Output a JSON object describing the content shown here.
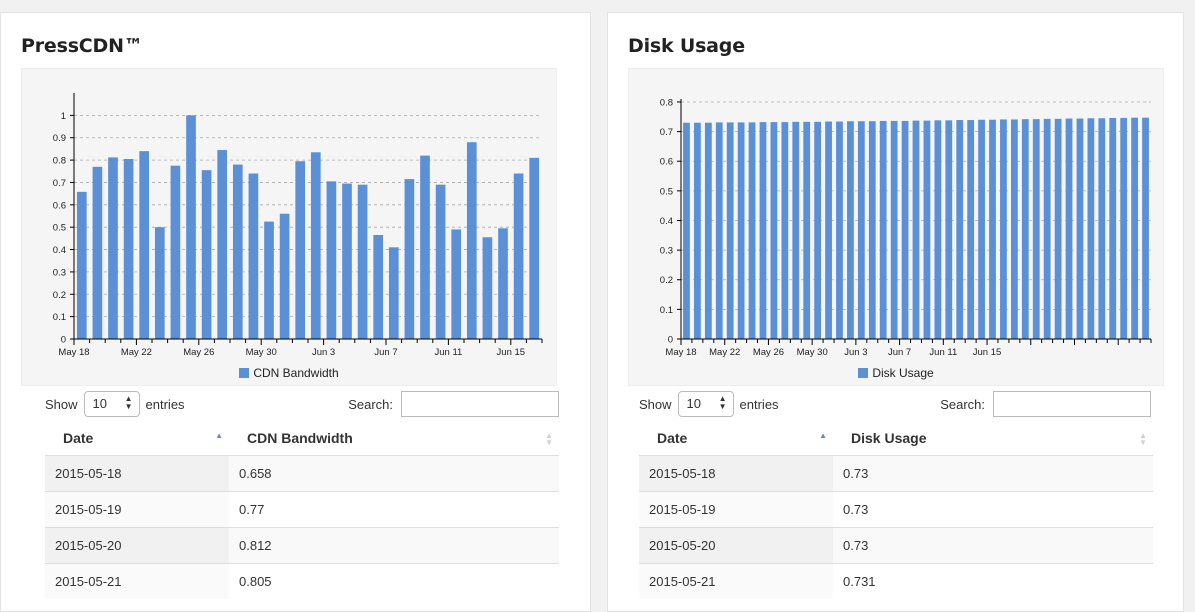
{
  "panels": [
    {
      "title": "PressCDN™",
      "legend": "CDN Bandwidth",
      "show_label": "Show",
      "entries_label": "entries",
      "page_size": "10",
      "search_label": "Search:",
      "columns": [
        "Date",
        "CDN Bandwidth"
      ],
      "rows": [
        [
          "2015-05-18",
          "0.658"
        ],
        [
          "2015-05-19",
          "0.77"
        ],
        [
          "2015-05-20",
          "0.812"
        ],
        [
          "2015-05-21",
          "0.805"
        ]
      ]
    },
    {
      "title": "Disk Usage",
      "legend": "Disk Usage",
      "show_label": "Show",
      "entries_label": "entries",
      "page_size": "10",
      "search_label": "Search:",
      "columns": [
        "Date",
        "Disk Usage"
      ],
      "rows": [
        [
          "2015-05-18",
          "0.73"
        ],
        [
          "2015-05-19",
          "0.73"
        ],
        [
          "2015-05-20",
          "0.73"
        ],
        [
          "2015-05-21",
          "0.731"
        ]
      ]
    }
  ],
  "colors": {
    "bar": "#5b90d6",
    "sort_active": "#6f7fd4",
    "sort_inactive": "#cfcfcf"
  },
  "chart_data": [
    {
      "type": "bar",
      "x_tick_labels": [
        "May 18",
        "May 22",
        "May 26",
        "May 30",
        "Jun 3",
        "Jun 7",
        "Jun 11",
        "Jun 15"
      ],
      "y_ticks": [
        "0",
        "0.1",
        "0.2",
        "0.3",
        "0.4",
        "0.5",
        "0.6",
        "0.7",
        "0.8",
        "0.9",
        "1"
      ],
      "ylim": [
        0,
        1.1
      ],
      "grid": true,
      "legend_position": "bottom",
      "series": [
        {
          "name": "CDN Bandwidth",
          "values": [
            0.658,
            0.77,
            0.812,
            0.805,
            0.84,
            0.5,
            0.775,
            1.0,
            0.755,
            0.845,
            0.78,
            0.74,
            0.525,
            0.56,
            0.795,
            0.835,
            0.705,
            0.695,
            0.69,
            0.465,
            0.41,
            0.715,
            0.82,
            0.69,
            0.49,
            0.88,
            0.455,
            0.495,
            0.74,
            0.81
          ]
        }
      ]
    },
    {
      "type": "bar",
      "x_tick_labels": [
        "May 18",
        "May 22",
        "May 26",
        "May 30",
        "Jun 3",
        "Jun 7",
        "Jun 11",
        "Jun 15"
      ],
      "y_ticks": [
        "0",
        "0.1",
        "0.2",
        "0.3",
        "0.4",
        "0.5",
        "0.6",
        "0.7",
        "0.8"
      ],
      "ylim": [
        0,
        0.81
      ],
      "grid": true,
      "legend_position": "bottom",
      "series": [
        {
          "name": "Disk Usage",
          "values": [
            0.73,
            0.73,
            0.73,
            0.731,
            0.731,
            0.731,
            0.731,
            0.732,
            0.732,
            0.732,
            0.733,
            0.733,
            0.733,
            0.734,
            0.734,
            0.735,
            0.735,
            0.735,
            0.736,
            0.736,
            0.736,
            0.737,
            0.737,
            0.738,
            0.738,
            0.739,
            0.739,
            0.74,
            0.74,
            0.741,
            0.741,
            0.742,
            0.742,
            0.743,
            0.743,
            0.744,
            0.744,
            0.745,
            0.745,
            0.746,
            0.746,
            0.747,
            0.747
          ]
        }
      ]
    }
  ]
}
